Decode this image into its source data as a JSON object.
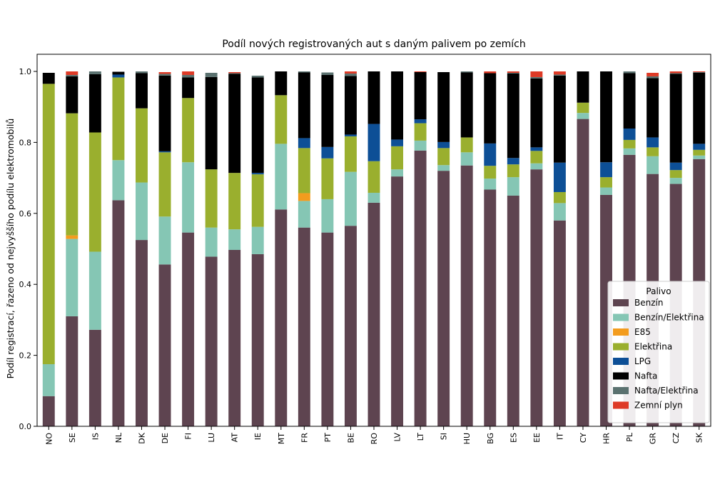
{
  "chart_data": {
    "type": "bar",
    "stacked": true,
    "title": "Podíl nových registrovaných aut s daným palivem po zemích",
    "xlabel": "",
    "ylabel": "Podíl registrací, řazeno od nejvyššího podílu elektromobilů",
    "ylim": [
      0,
      1.0
    ],
    "yticks": [
      "0.0",
      "0.2",
      "0.4",
      "0.6",
      "0.8",
      "1.0"
    ],
    "grid": false,
    "legend_position": "lower-right",
    "legend_title": "Palivo",
    "categories": [
      "NO",
      "SE",
      "IS",
      "NL",
      "DK",
      "DE",
      "FI",
      "LU",
      "AT",
      "IE",
      "MT",
      "FR",
      "PT",
      "BE",
      "RO",
      "LV",
      "LT",
      "SI",
      "HU",
      "BG",
      "ES",
      "EE",
      "IT",
      "CY",
      "HR",
      "PL",
      "GR",
      "CZ",
      "SK"
    ],
    "series": [
      {
        "name": "Benzín",
        "color": "#5e4450",
        "values": [
          0.085,
          0.31,
          0.272,
          0.637,
          0.525,
          0.456,
          0.546,
          0.478,
          0.497,
          0.485,
          0.611,
          0.56,
          0.546,
          0.565,
          0.63,
          0.704,
          0.777,
          0.72,
          0.735,
          0.667,
          0.65,
          0.724,
          0.58,
          0.866,
          0.652,
          0.765,
          0.711,
          0.683,
          0.753
        ]
      },
      {
        "name": "Benzín/Elektřina",
        "color": "#85c6b4",
        "values": [
          0.09,
          0.218,
          0.22,
          0.113,
          0.162,
          0.135,
          0.198,
          0.082,
          0.058,
          0.077,
          0.185,
          0.075,
          0.094,
          0.152,
          0.028,
          0.02,
          0.028,
          0.016,
          0.037,
          0.031,
          0.052,
          0.017,
          0.049,
          0.017,
          0.021,
          0.018,
          0.05,
          0.017,
          0.01
        ]
      },
      {
        "name": "E85",
        "color": "#f39c1e",
        "values": [
          0,
          0.01,
          0,
          0,
          0,
          0,
          0,
          0,
          0,
          0,
          0,
          0.022,
          0,
          0,
          0,
          0,
          0,
          0,
          0,
          0,
          0,
          0,
          0,
          0,
          0,
          0,
          0,
          0,
          0
        ]
      },
      {
        "name": "Elektřina",
        "color": "#9aaf2e",
        "values": [
          0.79,
          0.344,
          0.336,
          0.233,
          0.209,
          0.181,
          0.181,
          0.164,
          0.159,
          0.148,
          0.137,
          0.127,
          0.115,
          0.1,
          0.089,
          0.065,
          0.049,
          0.048,
          0.042,
          0.036,
          0.036,
          0.035,
          0.031,
          0.029,
          0.029,
          0.024,
          0.025,
          0.022,
          0.016
        ]
      },
      {
        "name": "LPG",
        "color": "#0d4f96",
        "values": [
          0,
          0,
          0,
          0.008,
          0,
          0.003,
          0,
          0,
          0,
          0.004,
          0,
          0.028,
          0.032,
          0.005,
          0.105,
          0.019,
          0.011,
          0.017,
          0,
          0.063,
          0.018,
          0.01,
          0.083,
          0,
          0.042,
          0.032,
          0.028,
          0.021,
          0.017
        ]
      },
      {
        "name": "Nafta",
        "color": "#000000",
        "values": [
          0.031,
          0.104,
          0.164,
          0.008,
          0.099,
          0.213,
          0.058,
          0.26,
          0.279,
          0.269,
          0.067,
          0.185,
          0.203,
          0.165,
          0.148,
          0.192,
          0.133,
          0.197,
          0.183,
          0.198,
          0.238,
          0.194,
          0.245,
          0.088,
          0.256,
          0.156,
          0.167,
          0.25,
          0.2
        ]
      },
      {
        "name": "Nafta/Elektřina",
        "color": "#5b7270",
        "values": [
          0,
          0.004,
          0.008,
          0,
          0.005,
          0.005,
          0.007,
          0.012,
          0.002,
          0.005,
          0,
          0.003,
          0.007,
          0.007,
          0,
          0,
          0,
          0,
          0.003,
          0,
          0.002,
          0.004,
          0.003,
          0,
          0,
          0.005,
          0.005,
          0.002,
          0.002
        ]
      },
      {
        "name": "Zemní plyn",
        "color": "#de3a26",
        "values": [
          0,
          0.01,
          0,
          0,
          0,
          0.005,
          0.01,
          0,
          0.003,
          0,
          0,
          0,
          0,
          0.006,
          0,
          0,
          0.002,
          0,
          0,
          0.005,
          0.004,
          0.016,
          0.009,
          0,
          0,
          0,
          0.01,
          0.005,
          0.002
        ]
      }
    ]
  }
}
